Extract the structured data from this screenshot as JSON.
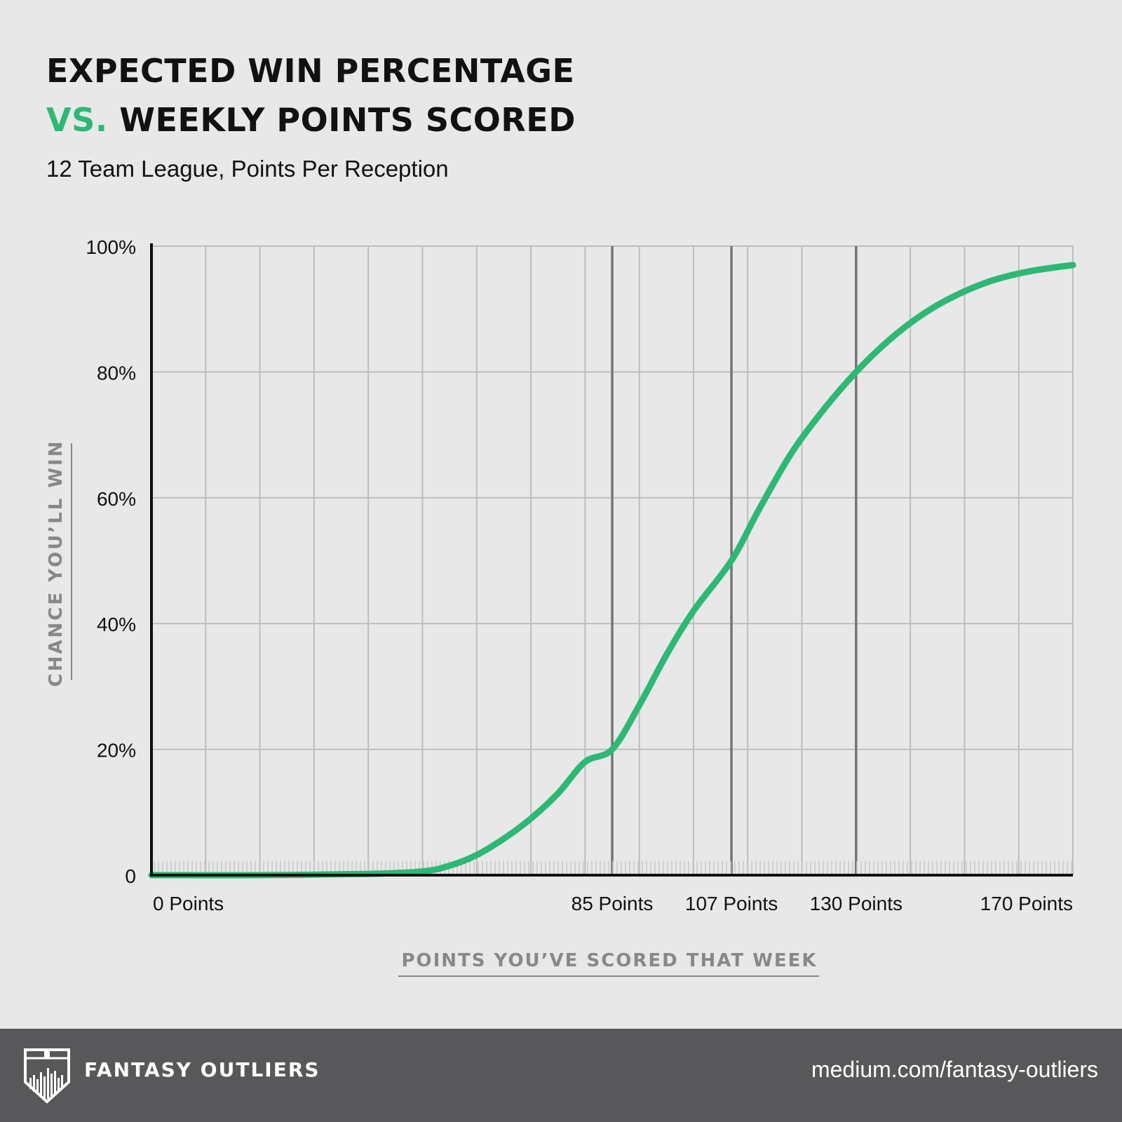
{
  "header": {
    "title_line1": "EXPECTED WIN PERCENTAGE",
    "title_accent": "VS.",
    "title_line2": "WEEKLY POINTS SCORED",
    "subtitle": "12 Team League, Points Per Reception"
  },
  "chart_data": {
    "type": "line",
    "xlabel": "POINTS YOU’VE SCORED THAT WEEK",
    "ylabel": "CHANCE YOU’LL WIN",
    "xlim": [
      0,
      170
    ],
    "ylim": [
      0,
      100
    ],
    "x_tick_values": [
      0,
      85,
      107,
      130,
      170
    ],
    "x_tick_labels": [
      "0 Points",
      "85 Points",
      "107 Points",
      "130 Points",
      "170 Points"
    ],
    "highlight_x": [
      85,
      107,
      130
    ],
    "y_tick_values": [
      0,
      20,
      40,
      60,
      80,
      100
    ],
    "y_tick_labels": [
      "0",
      "20%",
      "40%",
      "60%",
      "80%",
      "100%"
    ],
    "grid": true,
    "series": [
      {
        "color": "#2db873",
        "x": [
          0,
          20,
          40,
          50,
          55,
          60,
          65,
          70,
          75,
          80,
          85,
          90,
          95,
          100,
          107,
          112,
          118,
          124,
          130,
          136,
          142,
          148,
          155,
          162,
          170
        ],
        "y": [
          0,
          0,
          0.2,
          0.6,
          1.5,
          3.2,
          5.8,
          9,
          13,
          18,
          20,
          27,
          35,
          42,
          50,
          58,
          67,
          74,
          80,
          85,
          89,
          92,
          94.5,
          96,
          97
        ]
      }
    ]
  },
  "footer": {
    "brand": "FANTASY OUTLIERS",
    "url": "medium.com/fantasy-outliers",
    "logo_icon": "shield-bars-icon"
  },
  "colors": {
    "background": "#e8e8e8",
    "accent": "#2db873",
    "footer_bg": "#58585a",
    "axis_label": "#888888"
  }
}
